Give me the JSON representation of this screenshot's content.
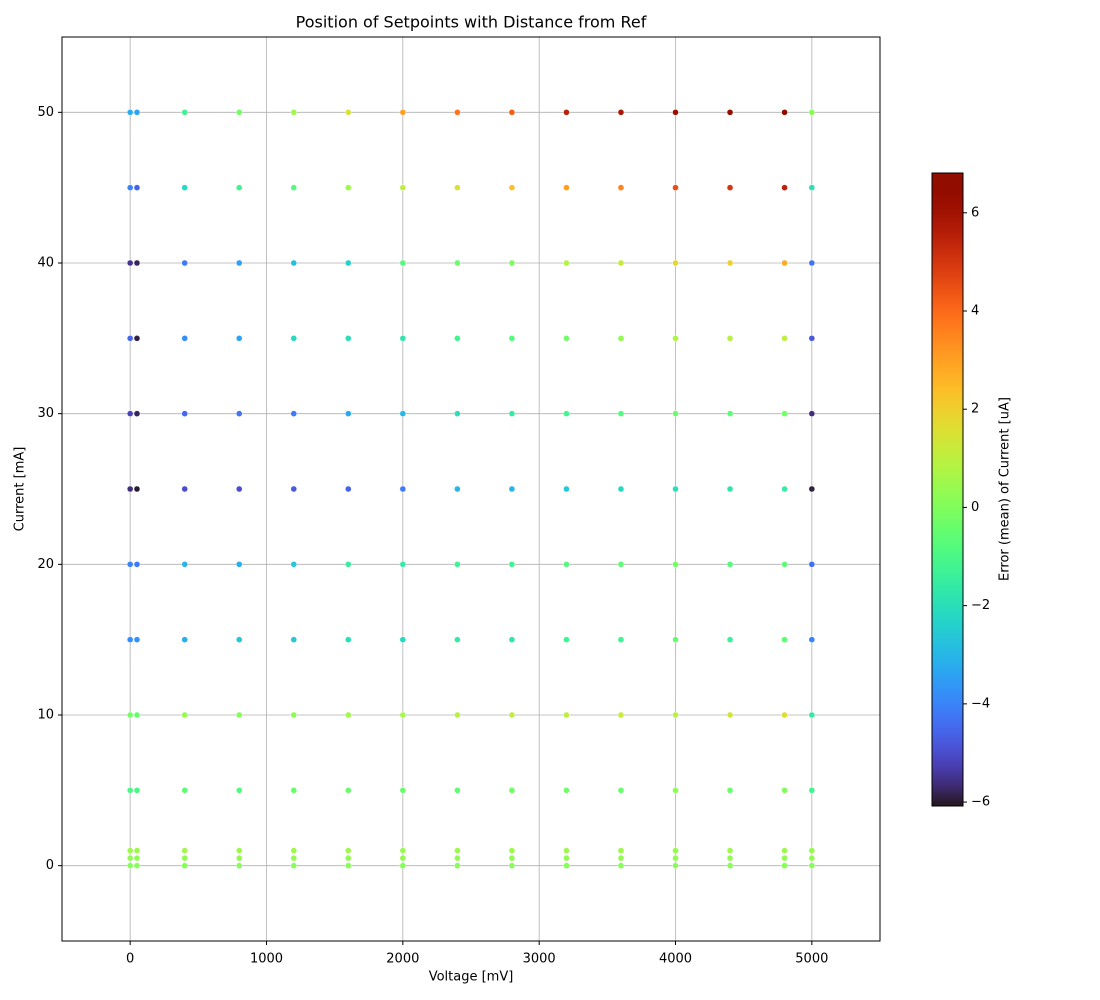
{
  "chart_data": {
    "type": "scatter",
    "title": "Position of Setpoints with Distance from Ref",
    "x_label": "Voltage [mV]",
    "y_label": "Current [mA]",
    "colorbar_label": "Error (mean) of Current [uA]",
    "colormap": "turbo",
    "grid": true,
    "xlim": [
      -500,
      5500
    ],
    "xticks": [
      0,
      1000,
      2000,
      3000,
      4000,
      5000
    ],
    "ylim": [
      -5,
      55
    ],
    "yticks": [
      0,
      10,
      20,
      30,
      40,
      50
    ],
    "clim": [
      -6.08,
      6.81
    ],
    "cticks": [
      {
        "value": -6,
        "label": "−6"
      },
      {
        "value": -4,
        "label": "−4"
      },
      {
        "value": -2,
        "label": "−2"
      },
      0,
      2,
      4,
      6
    ],
    "x": [
      0,
      50,
      400,
      800,
      1200,
      1600,
      2000,
      2400,
      2800,
      3200,
      3600,
      4000,
      4400,
      4800,
      5000
    ],
    "y": [
      50,
      45,
      40,
      35,
      30,
      25,
      20,
      15,
      10,
      5,
      1,
      0.5,
      0
    ],
    "values": [
      [
        -3.2,
        -3.4,
        -1.2,
        -0.2,
        0.5,
        1.5,
        3.0,
        3.8,
        4.2,
        5.5,
        5.8,
        6.2,
        6.5,
        6.6,
        0.2
      ],
      [
        -4.0,
        -4.6,
        -2.2,
        -1.2,
        -0.8,
        0.5,
        1.0,
        1.5,
        2.3,
        3.0,
        3.5,
        4.5,
        5.0,
        5.5,
        -2.0
      ],
      [
        -5.5,
        -5.8,
        -4.2,
        -3.5,
        -2.8,
        -2.4,
        -0.8,
        -0.4,
        0,
        0.8,
        1.2,
        1.8,
        2.0,
        2.8,
        -4.3
      ],
      [
        -4.5,
        -5.9,
        -3.8,
        -3.4,
        -2.2,
        -2.0,
        -1.8,
        -1.2,
        -0.8,
        -0.3,
        0.3,
        0.7,
        0.9,
        1.0,
        -4.8
      ],
      [
        -5.2,
        -5.8,
        -4.5,
        -4.3,
        -4.2,
        -3.3,
        -3.0,
        -2.0,
        -1.6,
        -1.2,
        -0.8,
        -0.4,
        -0.6,
        -0.2,
        -5.6
      ],
      [
        -5.6,
        -6.0,
        -5.0,
        -5.0,
        -4.8,
        -4.6,
        -4.2,
        -3.0,
        -3.0,
        -2.6,
        -2.2,
        -2.0,
        -1.8,
        -1.6,
        -5.9
      ],
      [
        -4.0,
        -4.2,
        -3.0,
        -3.2,
        -2.6,
        -1.5,
        -1.6,
        -1.3,
        -1.2,
        -0.8,
        -0.6,
        -0.2,
        -0.8,
        -0.6,
        -4.4
      ],
      [
        -3.8,
        -3.7,
        -3.2,
        -2.6,
        -2.6,
        -2.0,
        -2.2,
        -1.6,
        -1.8,
        -1.3,
        -1.3,
        -0.5,
        -1.4,
        -0.6,
        -4.0
      ],
      [
        -0.2,
        -0.5,
        0.4,
        0.1,
        0.2,
        0.5,
        0.6,
        0.9,
        1.0,
        1.0,
        1.2,
        1.0,
        1.4,
        1.6,
        -1.6
      ],
      [
        -1.0,
        -1.0,
        -0.6,
        -0.8,
        -0.4,
        -0.4,
        -0.4,
        -0.6,
        -0.3,
        -0.3,
        -0.4,
        0.2,
        -0.4,
        0.0,
        -1.2
      ],
      [
        0.5,
        0.5,
        0.6,
        0.5,
        0.5,
        0.5,
        0.4,
        0.5,
        0.5,
        0.5,
        0.5,
        0.4,
        0.5,
        0.5,
        0.4
      ],
      [
        0.3,
        0.3,
        0.3,
        0.3,
        0.3,
        0.3,
        0.3,
        0.3,
        0.3,
        0.3,
        0.3,
        0.3,
        0.3,
        0.3,
        0.3
      ],
      [
        0.1,
        0.1,
        0.1,
        0.1,
        0.1,
        0.1,
        0.1,
        0.1,
        0.1,
        0.1,
        0.1,
        0.1,
        0.1,
        0.1,
        0.1
      ]
    ]
  }
}
